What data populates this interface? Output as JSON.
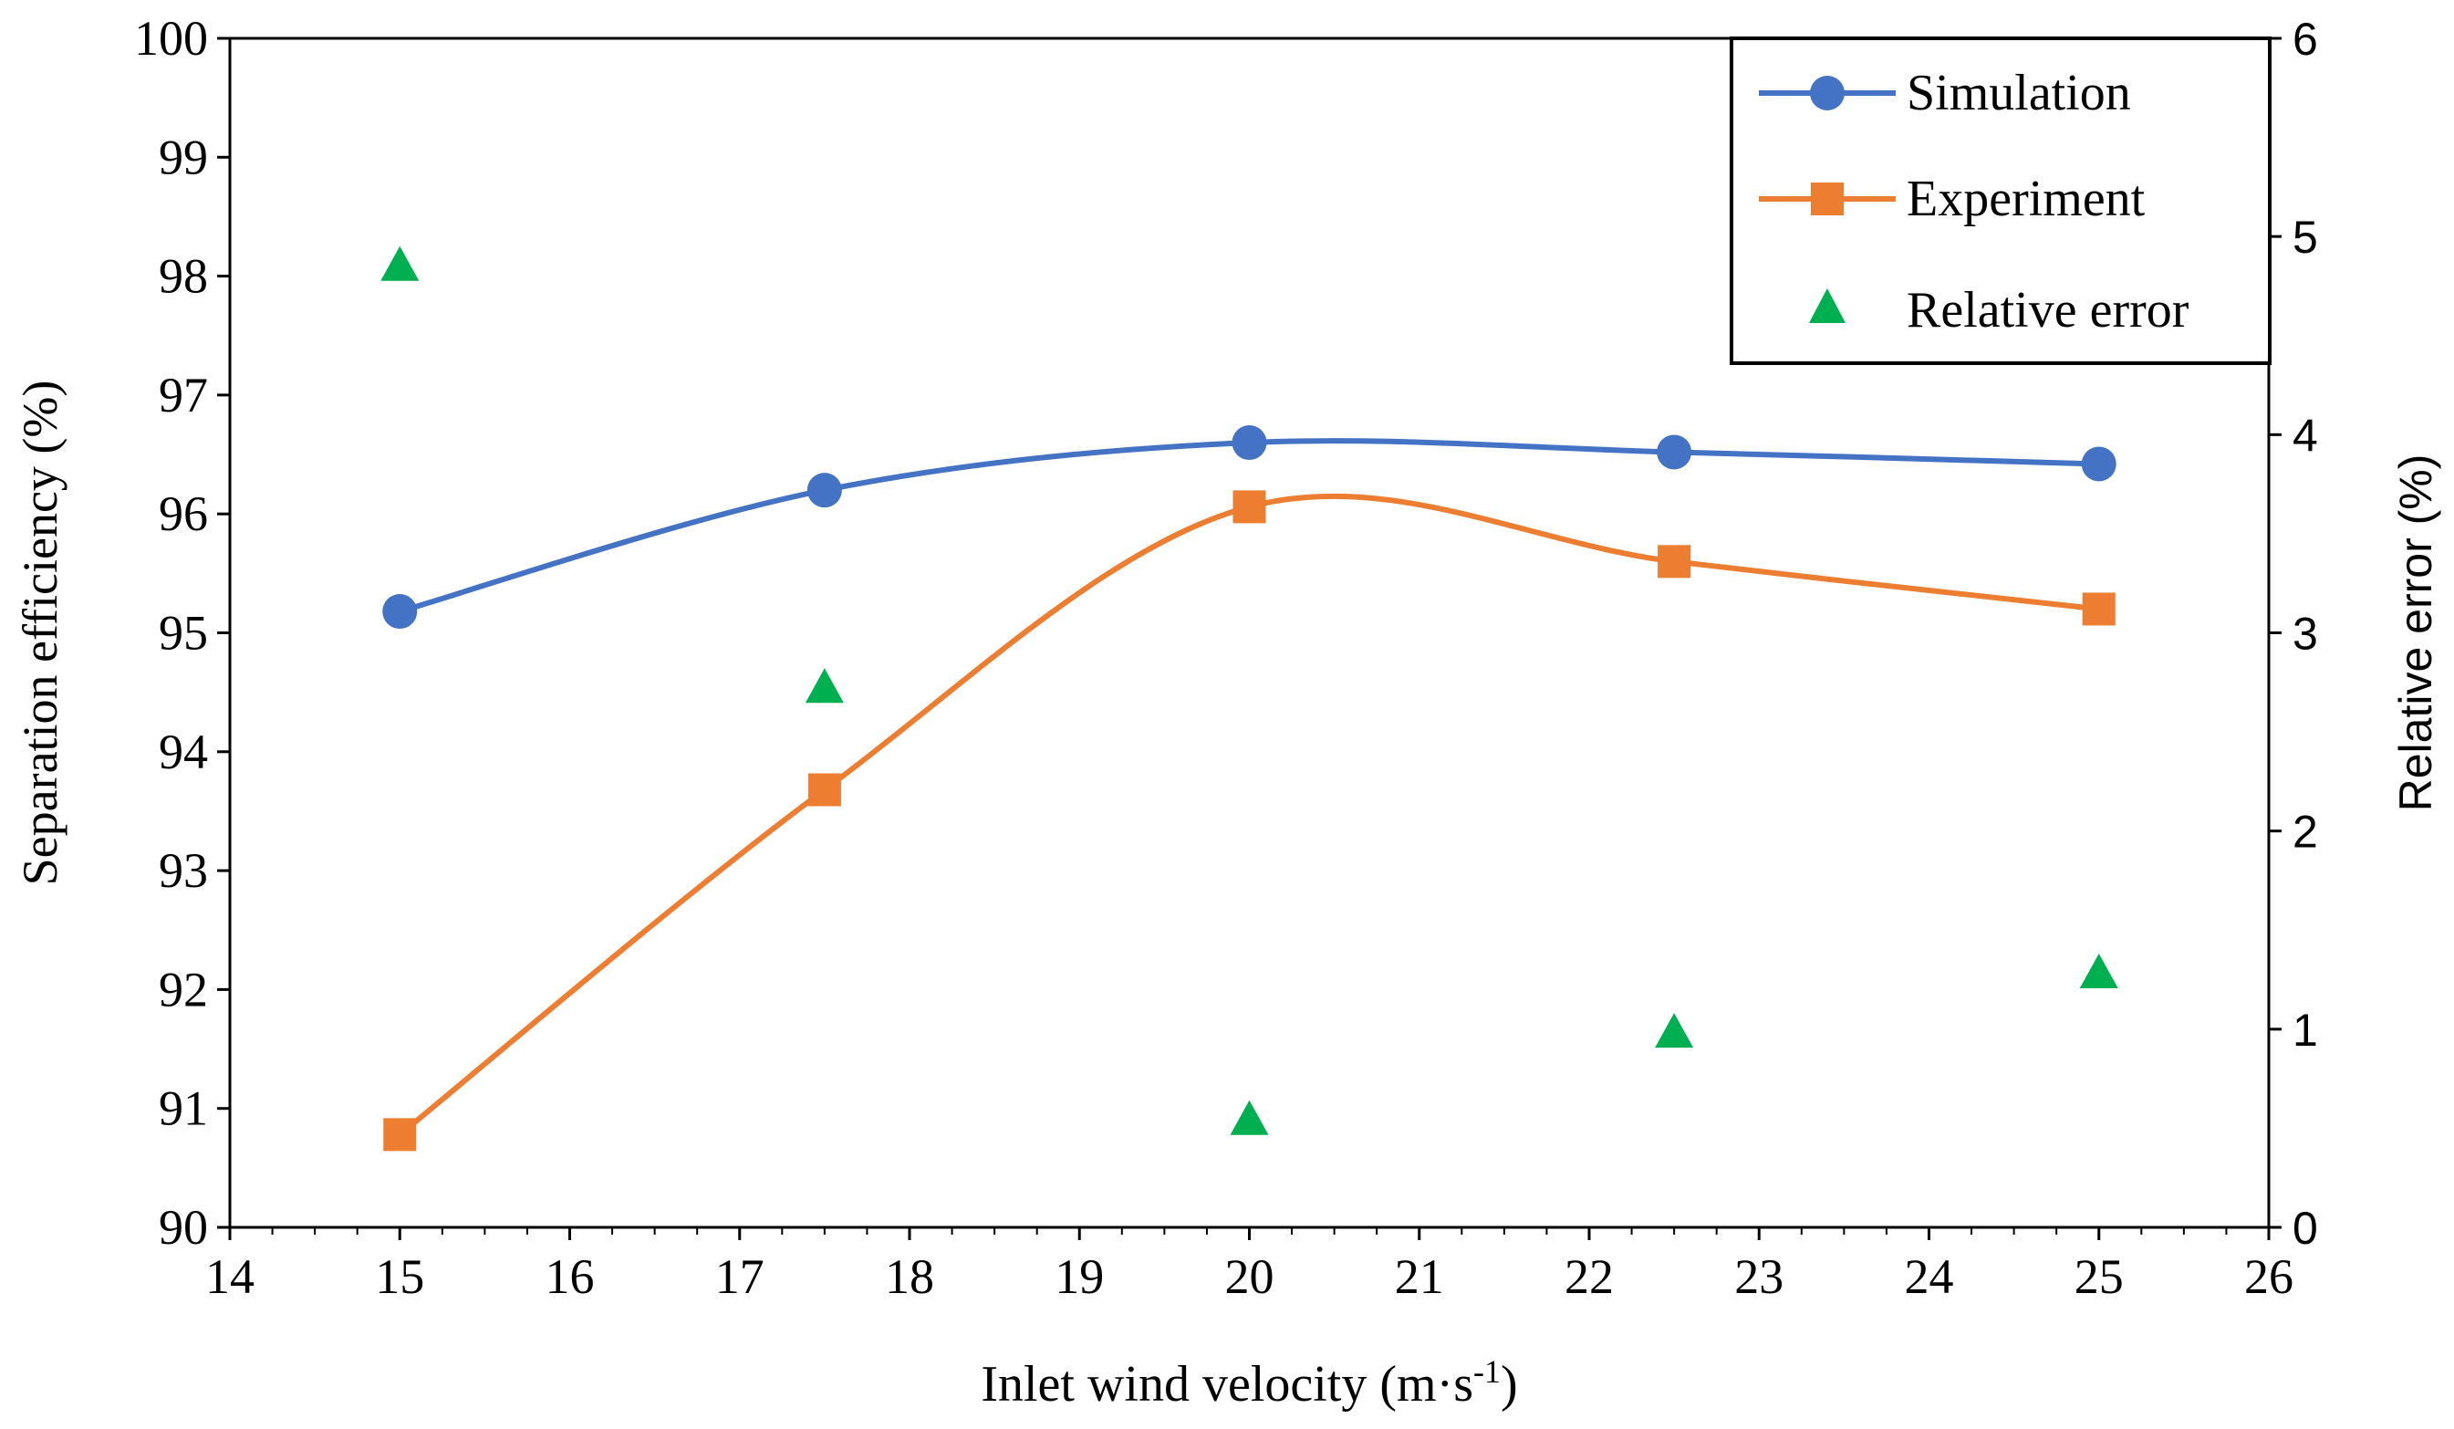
{
  "chart_data": {
    "type": "line",
    "title": "",
    "xlabel": "Inlet wind velocity (m·s",
    "xlabel_sup": "-1",
    "xlabel_end": ")",
    "ylabel": "Separation efficiency (%)",
    "ylabel_right": "Relative error (%)",
    "xlim": [
      14,
      26
    ],
    "ylim": [
      90,
      100
    ],
    "ylim_right": [
      0,
      6
    ],
    "x_ticks": [
      14,
      15,
      16,
      17,
      18,
      19,
      20,
      21,
      22,
      23,
      24,
      25,
      26
    ],
    "y_ticks": [
      90,
      91,
      92,
      93,
      94,
      95,
      96,
      97,
      98,
      99,
      100
    ],
    "y_right_ticks": [
      0,
      1,
      2,
      3,
      4,
      5,
      6
    ],
    "x": [
      15,
      17.5,
      20,
      22.5,
      25
    ],
    "legend_position": "top-right",
    "colors": {
      "simulation": "#4472C4",
      "experiment": "#ED7D31",
      "relative_error": "#00B050"
    },
    "series": [
      {
        "name": "Simulation",
        "axis": "left",
        "marker": "circle",
        "smooth": true,
        "values": [
          95.18,
          96.2,
          96.6,
          96.52,
          96.42
        ]
      },
      {
        "name": "Experiment",
        "axis": "left",
        "marker": "square",
        "smooth": true,
        "values": [
          90.78,
          93.68,
          96.06,
          95.6,
          95.2
        ]
      },
      {
        "name": "Relative error",
        "axis": "right",
        "marker": "triangle",
        "smooth": false,
        "values": [
          4.85,
          2.72,
          0.54,
          0.98,
          1.28
        ]
      }
    ]
  }
}
